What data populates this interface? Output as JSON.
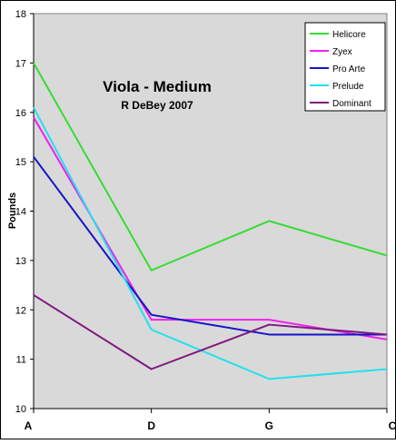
{
  "chart_data": {
    "type": "line",
    "title": "Viola - Medium",
    "subtitle": "R DeBey 2007",
    "xlabel": "",
    "ylabel": "Pounds",
    "categories": [
      "A",
      "D",
      "G",
      "C"
    ],
    "ylim": [
      10,
      18
    ],
    "yticks": [
      "10",
      "11",
      "12",
      "13",
      "14",
      "15",
      "16",
      "17",
      "18"
    ],
    "grid": false,
    "legend_position": "top-right",
    "plot_background": "#d9d9d9",
    "series": [
      {
        "name": "Helicore",
        "color": "#33dd33",
        "values": [
          17.0,
          12.8,
          13.8,
          13.1
        ]
      },
      {
        "name": "Zyex",
        "color": "#ee22ee",
        "values": [
          15.9,
          11.8,
          11.8,
          11.4
        ]
      },
      {
        "name": "Pro Arte",
        "color": "#1414c8",
        "values": [
          15.1,
          11.9,
          11.5,
          11.5
        ]
      },
      {
        "name": "Prelude",
        "color": "#22e0f0",
        "values": [
          16.1,
          11.6,
          10.6,
          10.8
        ]
      },
      {
        "name": "Dominant",
        "color": "#801880",
        "values": [
          12.3,
          10.8,
          11.7,
          11.5
        ]
      }
    ]
  }
}
